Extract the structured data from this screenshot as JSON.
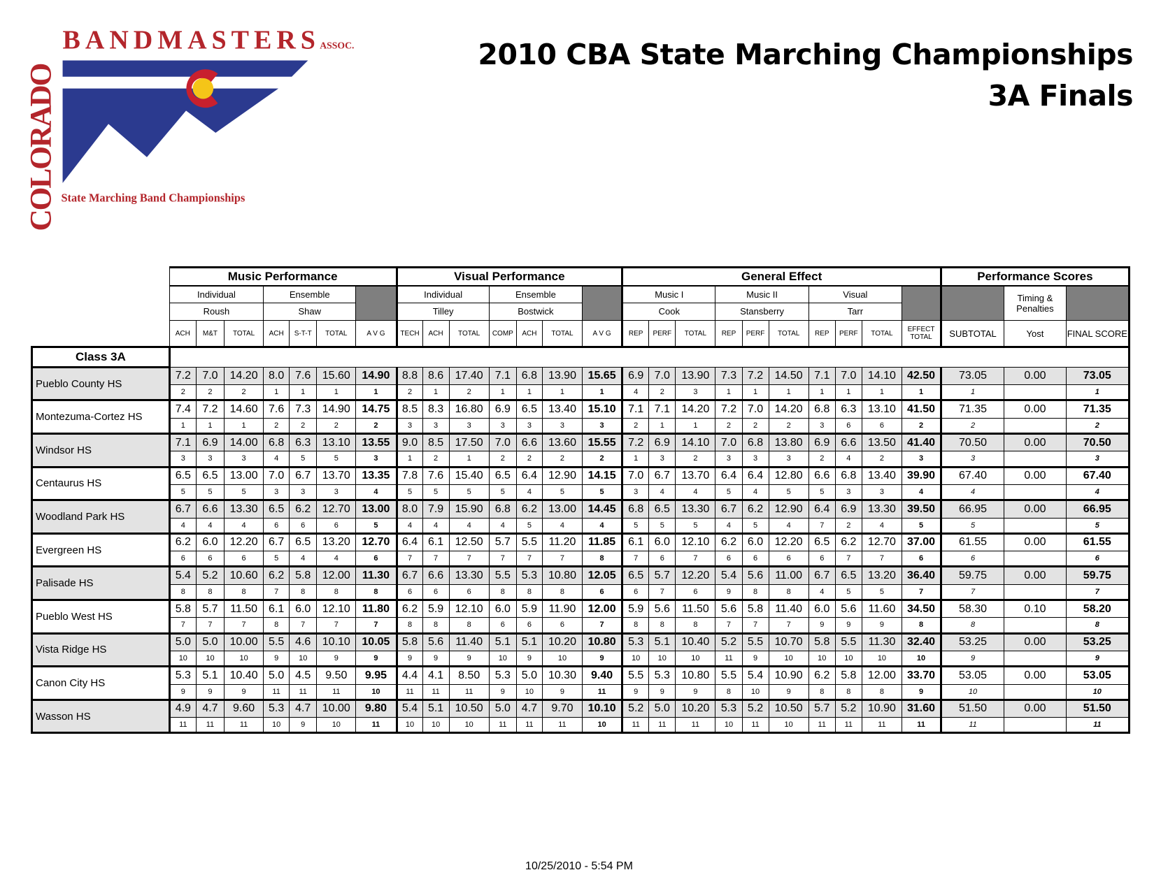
{
  "header": {
    "title_line1": "2010 CBA State Marching Championships",
    "title_line2": "3A Finals"
  },
  "logo": {
    "state": "COLORADO",
    "name": "BANDMASTERS",
    "assoc": "ASSOC.",
    "subtitle": "State Marching Band Championships"
  },
  "table": {
    "sections": [
      "Music Performance",
      "Visual Performance",
      "General Effect",
      "Performance Scores"
    ],
    "captions": [
      "Individual",
      "Ensemble",
      "Individual",
      "Ensemble",
      "Music I",
      "Music II",
      "Visual",
      "Timing & Penalties"
    ],
    "judges": [
      "Roush",
      "Shaw",
      "Tilley",
      "Bostwick",
      "Cook",
      "Stansberry",
      "Tarr"
    ],
    "columns": [
      "ACH",
      "M&T",
      "TOTAL",
      "ACH",
      "S-T-T",
      "TOTAL",
      "A V G",
      "TECH",
      "ACH",
      "TOTAL",
      "COMP",
      "ACH",
      "TOTAL",
      "A V G",
      "REP",
      "PERF",
      "TOTAL",
      "REP",
      "PERF",
      "TOTAL",
      "REP",
      "PERF",
      "TOTAL",
      "EFFECT TOTAL",
      "SUBTOTAL",
      "Yost",
      "FINAL SCORE"
    ],
    "class_label": "Class 3A",
    "rows": [
      {
        "school": "Pueblo County HS",
        "scores": [
          "7.2",
          "7.0",
          "14.20",
          "8.0",
          "7.6",
          "15.60",
          "14.90",
          "8.8",
          "8.6",
          "17.40",
          "7.1",
          "6.8",
          "13.90",
          "15.65",
          "6.9",
          "7.0",
          "13.90",
          "7.3",
          "7.2",
          "14.50",
          "7.1",
          "7.0",
          "14.10",
          "42.50",
          "73.05",
          "0.00",
          "73.05"
        ],
        "ranks": [
          "2",
          "2",
          "2",
          "1",
          "1",
          "1",
          "1",
          "2",
          "1",
          "2",
          "1",
          "1",
          "1",
          "1",
          "4",
          "2",
          "3",
          "1",
          "1",
          "1",
          "1",
          "1",
          "1",
          "1",
          "1",
          null,
          "1"
        ]
      },
      {
        "school": "Montezuma-Cortez HS",
        "scores": [
          "7.4",
          "7.2",
          "14.60",
          "7.6",
          "7.3",
          "14.90",
          "14.75",
          "8.5",
          "8.3",
          "16.80",
          "6.9",
          "6.5",
          "13.40",
          "15.10",
          "7.1",
          "7.1",
          "14.20",
          "7.2",
          "7.0",
          "14.20",
          "6.8",
          "6.3",
          "13.10",
          "41.50",
          "71.35",
          "0.00",
          "71.35"
        ],
        "ranks": [
          "1",
          "1",
          "1",
          "2",
          "2",
          "2",
          "2",
          "3",
          "3",
          "3",
          "3",
          "3",
          "3",
          "3",
          "2",
          "1",
          "1",
          "2",
          "2",
          "2",
          "3",
          "6",
          "6",
          "2",
          "2",
          null,
          "2"
        ]
      },
      {
        "school": "Windsor HS",
        "scores": [
          "7.1",
          "6.9",
          "14.00",
          "6.8",
          "6.3",
          "13.10",
          "13.55",
          "9.0",
          "8.5",
          "17.50",
          "7.0",
          "6.6",
          "13.60",
          "15.55",
          "7.2",
          "6.9",
          "14.10",
          "7.0",
          "6.8",
          "13.80",
          "6.9",
          "6.6",
          "13.50",
          "41.40",
          "70.50",
          "0.00",
          "70.50"
        ],
        "ranks": [
          "3",
          "3",
          "3",
          "4",
          "5",
          "5",
          "3",
          "1",
          "2",
          "1",
          "2",
          "2",
          "2",
          "2",
          "1",
          "3",
          "2",
          "3",
          "3",
          "3",
          "2",
          "4",
          "2",
          "3",
          "3",
          null,
          "3"
        ]
      },
      {
        "school": "Centaurus HS",
        "scores": [
          "6.5",
          "6.5",
          "13.00",
          "7.0",
          "6.7",
          "13.70",
          "13.35",
          "7.8",
          "7.6",
          "15.40",
          "6.5",
          "6.4",
          "12.90",
          "14.15",
          "7.0",
          "6.7",
          "13.70",
          "6.4",
          "6.4",
          "12.80",
          "6.6",
          "6.8",
          "13.40",
          "39.90",
          "67.40",
          "0.00",
          "67.40"
        ],
        "ranks": [
          "5",
          "5",
          "5",
          "3",
          "3",
          "3",
          "4",
          "5",
          "5",
          "5",
          "5",
          "4",
          "5",
          "5",
          "3",
          "4",
          "4",
          "5",
          "4",
          "5",
          "5",
          "3",
          "3",
          "4",
          "4",
          null,
          "4"
        ]
      },
      {
        "school": "Woodland Park HS",
        "scores": [
          "6.7",
          "6.6",
          "13.30",
          "6.5",
          "6.2",
          "12.70",
          "13.00",
          "8.0",
          "7.9",
          "15.90",
          "6.8",
          "6.2",
          "13.00",
          "14.45",
          "6.8",
          "6.5",
          "13.30",
          "6.7",
          "6.2",
          "12.90",
          "6.4",
          "6.9",
          "13.30",
          "39.50",
          "66.95",
          "0.00",
          "66.95"
        ],
        "ranks": [
          "4",
          "4",
          "4",
          "6",
          "6",
          "6",
          "5",
          "4",
          "4",
          "4",
          "4",
          "5",
          "4",
          "4",
          "5",
          "5",
          "5",
          "4",
          "5",
          "4",
          "7",
          "2",
          "4",
          "5",
          "5",
          null,
          "5"
        ]
      },
      {
        "school": "Evergreen HS",
        "scores": [
          "6.2",
          "6.0",
          "12.20",
          "6.7",
          "6.5",
          "13.20",
          "12.70",
          "6.4",
          "6.1",
          "12.50",
          "5.7",
          "5.5",
          "11.20",
          "11.85",
          "6.1",
          "6.0",
          "12.10",
          "6.2",
          "6.0",
          "12.20",
          "6.5",
          "6.2",
          "12.70",
          "37.00",
          "61.55",
          "0.00",
          "61.55"
        ],
        "ranks": [
          "6",
          "6",
          "6",
          "5",
          "4",
          "4",
          "6",
          "7",
          "7",
          "7",
          "7",
          "7",
          "7",
          "8",
          "7",
          "6",
          "7",
          "6",
          "6",
          "6",
          "6",
          "7",
          "7",
          "6",
          "6",
          null,
          "6"
        ]
      },
      {
        "school": "Palisade HS",
        "scores": [
          "5.4",
          "5.2",
          "10.60",
          "6.2",
          "5.8",
          "12.00",
          "11.30",
          "6.7",
          "6.6",
          "13.30",
          "5.5",
          "5.3",
          "10.80",
          "12.05",
          "6.5",
          "5.7",
          "12.20",
          "5.4",
          "5.6",
          "11.00",
          "6.7",
          "6.5",
          "13.20",
          "36.40",
          "59.75",
          "0.00",
          "59.75"
        ],
        "ranks": [
          "8",
          "8",
          "8",
          "7",
          "8",
          "8",
          "8",
          "6",
          "6",
          "6",
          "8",
          "8",
          "8",
          "6",
          "6",
          "7",
          "6",
          "9",
          "8",
          "8",
          "4",
          "5",
          "5",
          "7",
          "7",
          null,
          "7"
        ]
      },
      {
        "school": "Pueblo West HS",
        "scores": [
          "5.8",
          "5.7",
          "11.50",
          "6.1",
          "6.0",
          "12.10",
          "11.80",
          "6.2",
          "5.9",
          "12.10",
          "6.0",
          "5.9",
          "11.90",
          "12.00",
          "5.9",
          "5.6",
          "11.50",
          "5.6",
          "5.8",
          "11.40",
          "6.0",
          "5.6",
          "11.60",
          "34.50",
          "58.30",
          "0.10",
          "58.20"
        ],
        "ranks": [
          "7",
          "7",
          "7",
          "8",
          "7",
          "7",
          "7",
          "8",
          "8",
          "8",
          "6",
          "6",
          "6",
          "7",
          "8",
          "8",
          "8",
          "7",
          "7",
          "7",
          "9",
          "9",
          "9",
          "8",
          "8",
          null,
          "8"
        ]
      },
      {
        "school": "Vista Ridge HS",
        "scores": [
          "5.0",
          "5.0",
          "10.00",
          "5.5",
          "4.6",
          "10.10",
          "10.05",
          "5.8",
          "5.6",
          "11.40",
          "5.1",
          "5.1",
          "10.20",
          "10.80",
          "5.3",
          "5.1",
          "10.40",
          "5.2",
          "5.5",
          "10.70",
          "5.8",
          "5.5",
          "11.30",
          "32.40",
          "53.25",
          "0.00",
          "53.25"
        ],
        "ranks": [
          "10",
          "10",
          "10",
          "9",
          "10",
          "9",
          "9",
          "9",
          "9",
          "9",
          "10",
          "9",
          "10",
          "9",
          "10",
          "10",
          "10",
          "11",
          "9",
          "10",
          "10",
          "10",
          "10",
          "10",
          "9",
          null,
          "9"
        ]
      },
      {
        "school": "Canon City HS",
        "scores": [
          "5.3",
          "5.1",
          "10.40",
          "5.0",
          "4.5",
          "9.50",
          "9.95",
          "4.4",
          "4.1",
          "8.50",
          "5.3",
          "5.0",
          "10.30",
          "9.40",
          "5.5",
          "5.3",
          "10.80",
          "5.5",
          "5.4",
          "10.90",
          "6.2",
          "5.8",
          "12.00",
          "33.70",
          "53.05",
          "0.00",
          "53.05"
        ],
        "ranks": [
          "9",
          "9",
          "9",
          "11",
          "11",
          "11",
          "10",
          "11",
          "11",
          "11",
          "9",
          "10",
          "9",
          "11",
          "9",
          "9",
          "9",
          "8",
          "10",
          "9",
          "8",
          "8",
          "8",
          "9",
          "10",
          null,
          "10"
        ]
      },
      {
        "school": "Wasson HS",
        "scores": [
          "4.9",
          "4.7",
          "9.60",
          "5.3",
          "4.7",
          "10.00",
          "9.80",
          "5.4",
          "5.1",
          "10.50",
          "5.0",
          "4.7",
          "9.70",
          "10.10",
          "5.2",
          "5.0",
          "10.20",
          "5.3",
          "5.2",
          "10.50",
          "5.7",
          "5.2",
          "10.90",
          "31.60",
          "51.50",
          "0.00",
          "51.50"
        ],
        "ranks": [
          "11",
          "11",
          "11",
          "10",
          "9",
          "10",
          "11",
          "10",
          "10",
          "10",
          "11",
          "11",
          "11",
          "10",
          "11",
          "11",
          "11",
          "10",
          "11",
          "10",
          "11",
          "11",
          "11",
          "11",
          "11",
          null,
          "11"
        ]
      }
    ]
  },
  "footer": {
    "timestamp": "10/25/2010 - 5:54 PM"
  }
}
